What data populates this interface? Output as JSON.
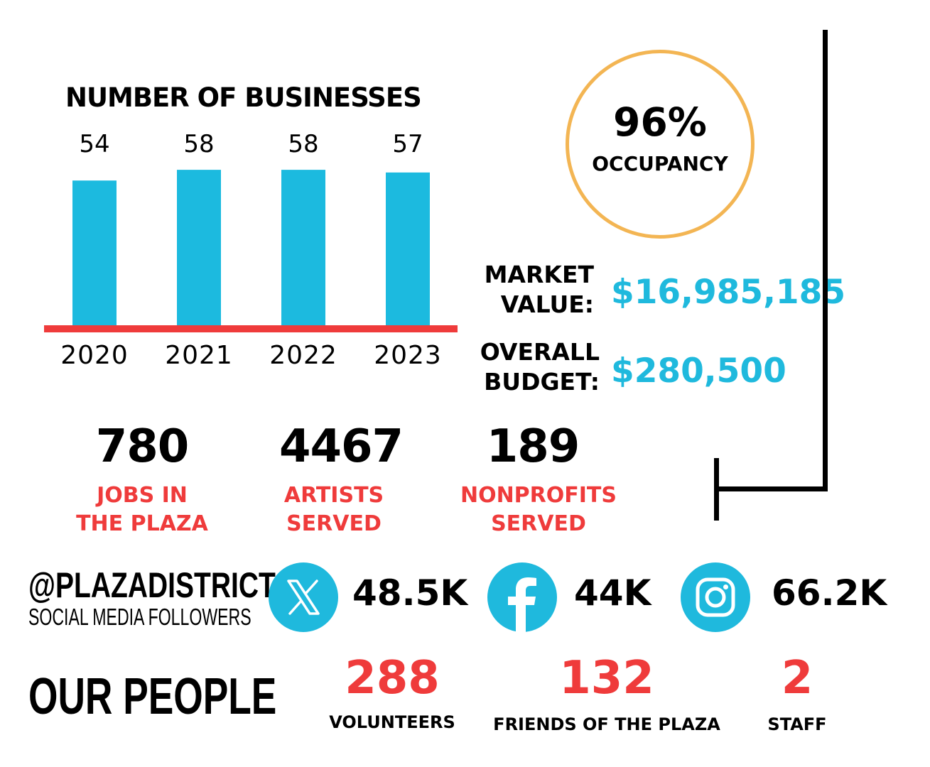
{
  "chart_data": {
    "type": "bar",
    "title": "NUMBER OF BUSINESSES",
    "categories": [
      "2020",
      "2021",
      "2022",
      "2023"
    ],
    "values": [
      54,
      58,
      58,
      57
    ],
    "data_labels": [
      "54",
      "58",
      "58",
      "57"
    ],
    "colors": {
      "bar": "#1cbadf",
      "baseline": "#ef3b3b"
    },
    "grid": false,
    "legend": "none"
  },
  "occupancy": {
    "value": "96%",
    "label": "OCCUPANCY",
    "ring_color": "#f3b553"
  },
  "finance": {
    "market_value": {
      "label_line1": "MARKET",
      "label_line2": "VALUE:",
      "value": "$16,985,185"
    },
    "overall_budget": {
      "label_line1": "OVERALL",
      "label_line2": "BUDGET:",
      "value": "$280,500"
    },
    "value_color": "#1fb9dd"
  },
  "stats": [
    {
      "number": "780",
      "line1": "JOBS IN",
      "line2": "THE PLAZA"
    },
    {
      "number": "4467",
      "line1": "ARTISTS",
      "line2": "SERVED"
    },
    {
      "number": "189",
      "line1": "NONPROFITS",
      "line2": "SERVED"
    }
  ],
  "social": {
    "handle": "@PLAZADISTRICT",
    "subtitle": "SOCIAL MEDIA FOLLOWERS",
    "platforms": [
      {
        "icon": "x-icon",
        "count": "48.5K"
      },
      {
        "icon": "facebook-icon",
        "count": "44K"
      },
      {
        "icon": "instagram-icon",
        "count": "66.2K"
      }
    ]
  },
  "people": {
    "title": "OUR PEOPLE",
    "items": [
      {
        "number": "288",
        "label": "VOLUNTEERS"
      },
      {
        "number": "132",
        "label": "FRIENDS OF THE PLAZA"
      },
      {
        "number": "2",
        "label": "STAFF"
      }
    ]
  }
}
